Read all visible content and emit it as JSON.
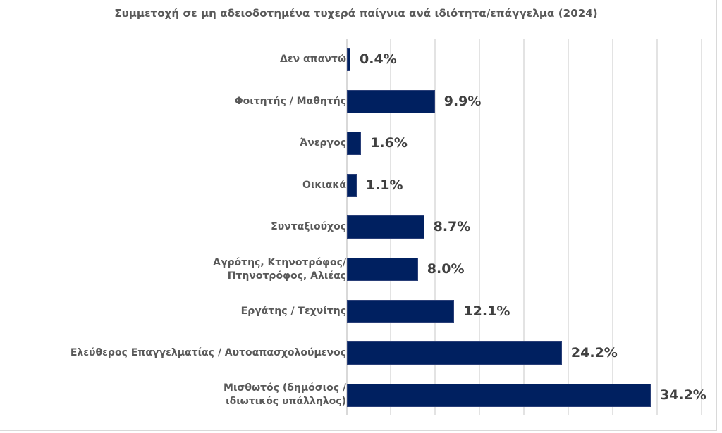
{
  "chart_data": {
    "type": "bar",
    "orientation": "horizontal",
    "title": "Συμμετοχή σε μη αδειοδοτημένα τυχερά παίγνια ανά ιδιότητα/επάγγελμα (2024)",
    "xlabel": "",
    "ylabel": "",
    "xlim": [
      0,
      40
    ],
    "grid_step": 5,
    "grid": true,
    "legend": false,
    "bar_color": "#002060",
    "categories": [
      "Δεν απαντώ",
      "Φοιτητής / Μαθητής",
      "Άνεργος",
      "Οικιακά",
      "Συνταξιούχος",
      "Αγρότης, Κτηνοτρόφος/ Πτηνοτρόφος, Αλιέας",
      "Εργάτης / Τεχνίτης",
      "Ελεύθερος Επαγγελματίας / Αυτοαπασχολούμενος",
      "Μισθωτός (δημόσιος / ιδιωτικός υπάλληλος)"
    ],
    "values": [
      0.4,
      9.9,
      1.6,
      1.1,
      8.7,
      8.0,
      12.1,
      24.2,
      34.2
    ],
    "data_labels": [
      "0.4%",
      "9.9%",
      "1.6%",
      "1.1%",
      "8.7%",
      "8.0%",
      "12.1%",
      "24.2%",
      "34.2%"
    ]
  },
  "title": "Συμμετοχή σε μη αδειοδοτημένα τυχερά παίγνια ανά ιδιότητα/επάγγελμα (2024)",
  "rows": [
    {
      "lines": [
        "Δεν απαντώ"
      ],
      "label": "0.4%",
      "value": 0.4
    },
    {
      "lines": [
        "Φοιτητής / Μαθητής"
      ],
      "label": "9.9%",
      "value": 9.9
    },
    {
      "lines": [
        "Άνεργος"
      ],
      "label": "1.6%",
      "value": 1.6
    },
    {
      "lines": [
        "Οικιακά"
      ],
      "label": "1.1%",
      "value": 1.1
    },
    {
      "lines": [
        "Συνταξιούχος"
      ],
      "label": "8.7%",
      "value": 8.7
    },
    {
      "lines": [
        "Αγρότης, Κτηνοτρόφος/",
        "Πτηνοτρόφος, Αλιέας"
      ],
      "label": "8.0%",
      "value": 8.0
    },
    {
      "lines": [
        "Εργάτης / Τεχνίτης"
      ],
      "label": "12.1%",
      "value": 12.1
    },
    {
      "lines": [
        "Ελεύθερος Επαγγελματίας / Αυτοαπασχολούμενος"
      ],
      "label": "24.2%",
      "value": 24.2
    },
    {
      "lines": [
        "Μισθωτός (δημόσιος /",
        "ιδιωτικός υπάλληλος)"
      ],
      "label": "34.2%",
      "value": 34.2
    }
  ]
}
